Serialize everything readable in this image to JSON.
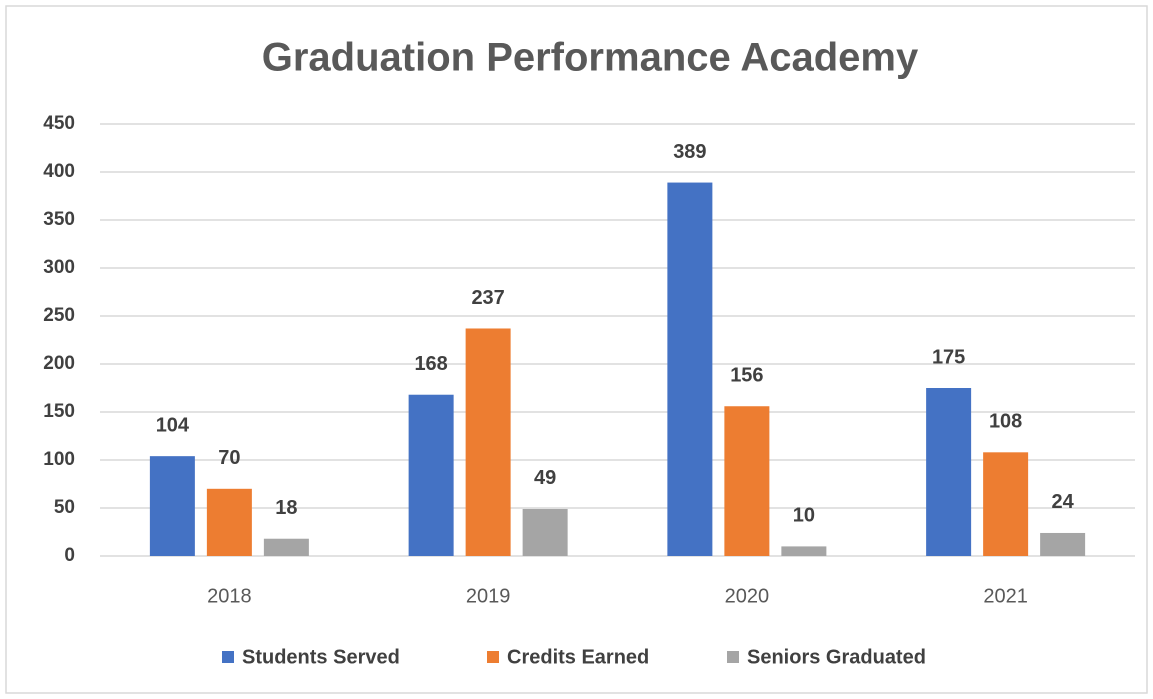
{
  "chart_data": {
    "type": "bar",
    "title": "Graduation Performance Academy",
    "categories": [
      "2018",
      "2019",
      "2020",
      "2021"
    ],
    "series": [
      {
        "name": "Students Served",
        "color": "#4472c4",
        "values": [
          104,
          168,
          389,
          175
        ]
      },
      {
        "name": "Credits Earned",
        "color": "#ed7d31",
        "values": [
          70,
          237,
          156,
          108
        ]
      },
      {
        "name": "Seniors Graduated",
        "color": "#a5a5a5",
        "values": [
          18,
          49,
          10,
          24
        ]
      }
    ],
    "ylim": [
      0,
      450
    ],
    "yticks": [
      0,
      50,
      100,
      150,
      200,
      250,
      300,
      350,
      400,
      450
    ],
    "grid": true,
    "legend": "bottom"
  }
}
